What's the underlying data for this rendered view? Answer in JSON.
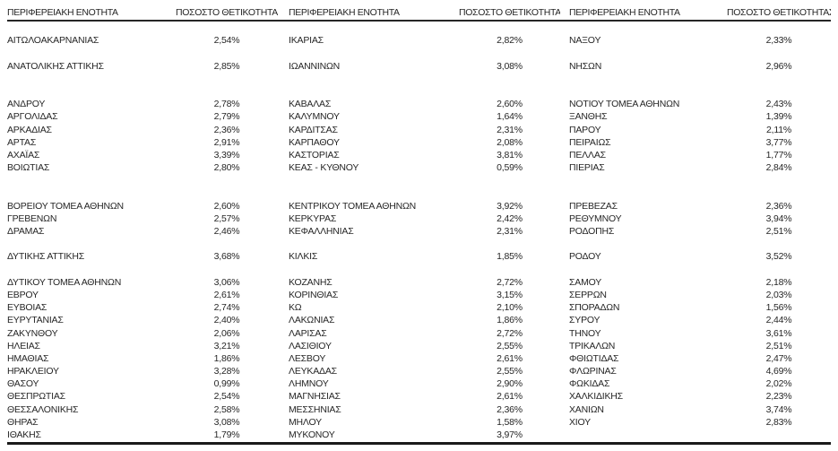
{
  "colors": {
    "text": "#262626",
    "header_border": "#262626",
    "bottom_border": "#1a1a1a"
  },
  "table": {
    "header": {
      "region_label": "ΠΕΡΙΦΕΡΕΙΑΚΗ ΕΝΟΤΗΤΑ",
      "value_label": "ΠΟΣΟΣΤΟ ΘΕΤΙΚΟΤΗΤΑΣ"
    },
    "rows": [
      {
        "cells": [
          {
            "name": "",
            "value": ""
          },
          {
            "name": "",
            "value": ""
          },
          {
            "name": "",
            "value": ""
          }
        ]
      },
      {
        "cells": [
          {
            "name": "ΑΙΤΩΛΟΑΚΑΡΝΑΝΙΑΣ",
            "value": "2,54%"
          },
          {
            "name": "ΙΚΑΡΙΑΣ",
            "value": "2,82%"
          },
          {
            "name": "ΝΑΞΟΥ",
            "value": "2,33%"
          }
        ]
      },
      {
        "cells": [
          {
            "name": "",
            "value": ""
          },
          {
            "name": "",
            "value": ""
          },
          {
            "name": "",
            "value": ""
          }
        ]
      },
      {
        "cells": [
          {
            "name": "ΑΝΑΤΟΛΙΚΗΣ ΑΤΤΙΚΗΣ",
            "value": "2,85%"
          },
          {
            "name": "ΙΩΑΝΝΙΝΩΝ",
            "value": "3,08%"
          },
          {
            "name": "ΝΗΣΩΝ",
            "value": "2,96%"
          }
        ]
      },
      {
        "cells": [
          {
            "name": "",
            "value": ""
          },
          {
            "name": "",
            "value": ""
          },
          {
            "name": "",
            "value": ""
          }
        ]
      },
      {
        "cells": [
          {
            "name": "",
            "value": ""
          },
          {
            "name": "",
            "value": ""
          },
          {
            "name": "",
            "value": ""
          }
        ]
      },
      {
        "cells": [
          {
            "name": "ΑΝΔΡΟΥ",
            "value": "2,78%"
          },
          {
            "name": "ΚΑΒΑΛΑΣ",
            "value": "2,60%"
          },
          {
            "name": "ΝΟΤΙΟΥ ΤΟΜΕΑ ΑΘΗΝΩΝ",
            "value": "2,43%"
          }
        ]
      },
      {
        "cells": [
          {
            "name": "ΑΡΓΟΛΙΔΑΣ",
            "value": "2,79%"
          },
          {
            "name": "ΚΑΛΥΜΝΟΥ",
            "value": "1,64%"
          },
          {
            "name": "ΞΑΝΘΗΣ",
            "value": "1,39%"
          }
        ]
      },
      {
        "cells": [
          {
            "name": "ΑΡΚΑΔΙΑΣ",
            "value": "2,36%"
          },
          {
            "name": "ΚΑΡΔΙΤΣΑΣ",
            "value": "2,31%"
          },
          {
            "name": "ΠΑΡΟΥ",
            "value": "2,11%"
          }
        ]
      },
      {
        "cells": [
          {
            "name": "ΑΡΤΑΣ",
            "value": "2,91%"
          },
          {
            "name": "ΚΑΡΠΑΘΟΥ",
            "value": "2,08%"
          },
          {
            "name": "ΠΕΙΡΑΙΩΣ",
            "value": "3,77%"
          }
        ]
      },
      {
        "cells": [
          {
            "name": "ΑΧΑΪΑΣ",
            "value": "3,39%"
          },
          {
            "name": "ΚΑΣΤΟΡΙΑΣ",
            "value": "3,81%"
          },
          {
            "name": "ΠΕΛΛΑΣ",
            "value": "1,77%"
          }
        ]
      },
      {
        "cells": [
          {
            "name": "ΒΟΙΩΤΙΑΣ",
            "value": "2,80%"
          },
          {
            "name": "ΚΕΑΣ - ΚΥΘΝΟΥ",
            "value": "0,59%"
          },
          {
            "name": "ΠΙΕΡΙΑΣ",
            "value": "2,84%"
          }
        ]
      },
      {
        "cells": [
          {
            "name": "",
            "value": ""
          },
          {
            "name": "",
            "value": ""
          },
          {
            "name": "",
            "value": ""
          }
        ]
      },
      {
        "cells": [
          {
            "name": "",
            "value": ""
          },
          {
            "name": "",
            "value": ""
          },
          {
            "name": "",
            "value": ""
          }
        ]
      },
      {
        "cells": [
          {
            "name": "ΒΟΡΕΙΟΥ ΤΟΜΕΑ ΑΘΗΝΩΝ",
            "value": "2,60%"
          },
          {
            "name": "ΚΕΝΤΡΙΚΟΥ ΤΟΜΕΑ ΑΘΗΝΩΝ",
            "value": "3,92%"
          },
          {
            "name": "ΠΡΕΒΕΖΑΣ",
            "value": "2,36%"
          }
        ]
      },
      {
        "cells": [
          {
            "name": "ΓΡΕΒΕΝΩΝ",
            "value": "2,57%"
          },
          {
            "name": "ΚΕΡΚΥΡΑΣ",
            "value": "2,42%"
          },
          {
            "name": "ΡΕΘΥΜΝΟΥ",
            "value": "3,94%"
          }
        ]
      },
      {
        "cells": [
          {
            "name": "ΔΡΑΜΑΣ",
            "value": "2,46%"
          },
          {
            "name": "ΚΕΦΑΛΛΗΝΙΑΣ",
            "value": "2,31%"
          },
          {
            "name": "ΡΟΔΟΠΗΣ",
            "value": "2,51%"
          }
        ]
      },
      {
        "cells": [
          {
            "name": "",
            "value": ""
          },
          {
            "name": "",
            "value": ""
          },
          {
            "name": "",
            "value": ""
          }
        ]
      },
      {
        "cells": [
          {
            "name": "ΔΥΤΙΚΗΣ ΑΤΤΙΚΗΣ",
            "value": "3,68%"
          },
          {
            "name": "ΚΙΛΚΙΣ",
            "value": "1,85%"
          },
          {
            "name": "ΡΟΔΟΥ",
            "value": "3,52%"
          }
        ]
      },
      {
        "cells": [
          {
            "name": "",
            "value": ""
          },
          {
            "name": "",
            "value": ""
          },
          {
            "name": "",
            "value": ""
          }
        ]
      },
      {
        "cells": [
          {
            "name": "ΔΥΤΙΚΟΥ ΤΟΜΕΑ ΑΘΗΝΩΝ",
            "value": "3,06%"
          },
          {
            "name": "ΚΟΖΑΝΗΣ",
            "value": "2,72%"
          },
          {
            "name": "ΣΑΜΟΥ",
            "value": "2,18%"
          }
        ]
      },
      {
        "cells": [
          {
            "name": "ΕΒΡΟΥ",
            "value": "2,61%"
          },
          {
            "name": "ΚΟΡΙΝΘΙΑΣ",
            "value": "3,15%"
          },
          {
            "name": "ΣΕΡΡΩΝ",
            "value": "2,03%"
          }
        ]
      },
      {
        "cells": [
          {
            "name": "ΕΥΒΟΙΑΣ",
            "value": "2,74%"
          },
          {
            "name": "ΚΩ",
            "value": "2,10%"
          },
          {
            "name": "ΣΠΟΡΑΔΩΝ",
            "value": "1,56%"
          }
        ]
      },
      {
        "cells": [
          {
            "name": "ΕΥΡΥΤΑΝΙΑΣ",
            "value": "2,40%"
          },
          {
            "name": "ΛΑΚΩΝΙΑΣ",
            "value": "1,86%"
          },
          {
            "name": "ΣΥΡΟΥ",
            "value": "2,44%"
          }
        ]
      },
      {
        "cells": [
          {
            "name": "ΖΑΚΥΝΘΟΥ",
            "value": "2,06%"
          },
          {
            "name": "ΛΑΡΙΣΑΣ",
            "value": "2,72%"
          },
          {
            "name": "ΤΗΝΟΥ",
            "value": "3,61%"
          }
        ]
      },
      {
        "cells": [
          {
            "name": "ΗΛΕΙΑΣ",
            "value": "3,21%"
          },
          {
            "name": "ΛΑΣΙΘΙΟΥ",
            "value": "2,55%"
          },
          {
            "name": "ΤΡΙΚΑΛΩΝ",
            "value": "2,51%"
          }
        ]
      },
      {
        "cells": [
          {
            "name": "ΗΜΑΘΙΑΣ",
            "value": "1,86%"
          },
          {
            "name": "ΛΕΣΒΟΥ",
            "value": "2,61%"
          },
          {
            "name": "ΦΘΙΩΤΙΔΑΣ",
            "value": "2,47%"
          }
        ]
      },
      {
        "cells": [
          {
            "name": "ΗΡΑΚΛΕΙΟΥ",
            "value": "3,28%"
          },
          {
            "name": "ΛΕΥΚΑΔΑΣ",
            "value": "2,55%"
          },
          {
            "name": "ΦΛΩΡΙΝΑΣ",
            "value": "4,69%"
          }
        ]
      },
      {
        "cells": [
          {
            "name": "ΘΑΣΟΥ",
            "value": "0,99%"
          },
          {
            "name": "ΛΗΜΝΟΥ",
            "value": "2,90%"
          },
          {
            "name": "ΦΩΚΙΔΑΣ",
            "value": "2,02%"
          }
        ]
      },
      {
        "cells": [
          {
            "name": "ΘΕΣΠΡΩΤΙΑΣ",
            "value": "2,54%"
          },
          {
            "name": "ΜΑΓΝΗΣΙΑΣ",
            "value": "2,61%"
          },
          {
            "name": "ΧΑΛΚΙΔΙΚΗΣ",
            "value": "2,23%"
          }
        ]
      },
      {
        "cells": [
          {
            "name": "ΘΕΣΣΑΛΟΝΙΚΗΣ",
            "value": "2,58%"
          },
          {
            "name": "ΜΕΣΣΗΝΙΑΣ",
            "value": "2,36%"
          },
          {
            "name": "ΧΑΝΙΩΝ",
            "value": "3,74%"
          }
        ]
      },
      {
        "cells": [
          {
            "name": "ΘΗΡΑΣ",
            "value": "3,08%"
          },
          {
            "name": "ΜΗΛΟΥ",
            "value": "1,58%"
          },
          {
            "name": "ΧΙΟΥ",
            "value": "2,83%"
          }
        ]
      },
      {
        "cells": [
          {
            "name": "ΙΘΑΚΗΣ",
            "value": "1,79%"
          },
          {
            "name": "ΜΥΚΟΝΟΥ",
            "value": "3,97%"
          },
          {
            "name": "",
            "value": ""
          }
        ]
      }
    ]
  }
}
